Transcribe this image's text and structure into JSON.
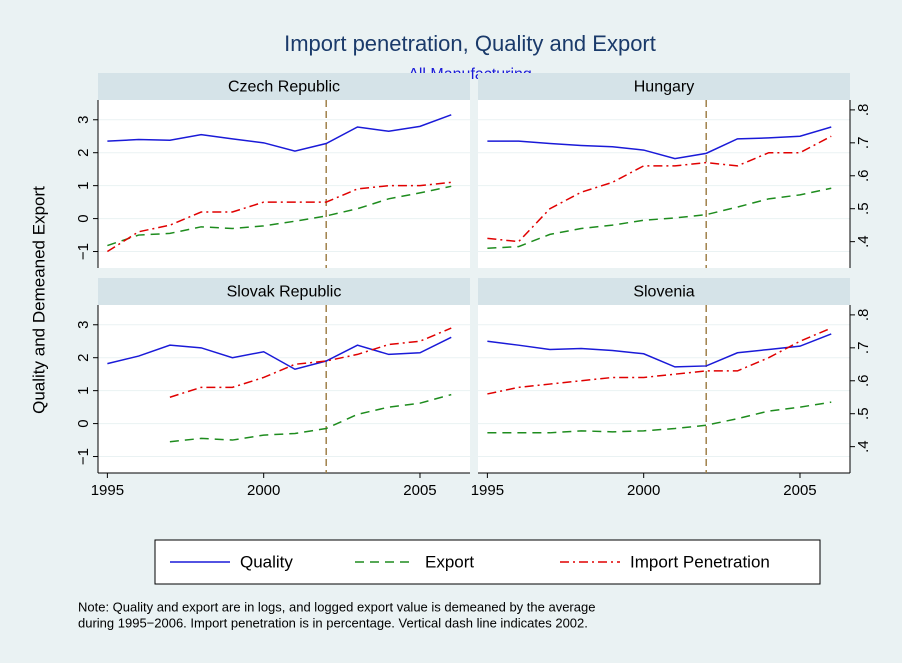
{
  "figure": {
    "title": "Import penetration, Quality and Export",
    "subtitle": "All Manufacturing",
    "y_label": "Quality and Demeaned Export",
    "note": [
      "Note: Quality and export are in logs, and logged export value is demeaned by the average",
      "during 1995−2006. Import penetration is in percentage. Vertical dash line indicates 2002."
    ]
  },
  "chart_data": [
    {
      "type": "line",
      "title": "Czech Republic",
      "x": [
        1995,
        1996,
        1997,
        1998,
        1999,
        2000,
        2001,
        2002,
        2003,
        2004,
        2005,
        2006
      ],
      "series": [
        {
          "name": "Quality",
          "color": "#1a1ad8",
          "style": "solid",
          "values": [
            2.35,
            2.4,
            2.38,
            2.55,
            2.42,
            2.3,
            2.05,
            2.28,
            2.78,
            2.65,
            2.8,
            3.15
          ]
        },
        {
          "name": "Export",
          "color": "#1e8c1e",
          "style": "dash",
          "values": [
            -0.82,
            -0.5,
            -0.45,
            -0.25,
            -0.3,
            -0.22,
            -0.08,
            0.08,
            0.3,
            0.6,
            0.78,
            0.98
          ]
        },
        {
          "name": "Import Penetration",
          "color": "#e00000",
          "style": "dashdot",
          "axis": "y2",
          "values": [
            0.37,
            0.43,
            0.45,
            0.49,
            0.49,
            0.52,
            0.52,
            0.52,
            0.56,
            0.57,
            0.57,
            0.58
          ]
        }
      ],
      "xlim": [
        1994.7,
        2006.6
      ],
      "xticks": [
        1995,
        2000,
        2005
      ],
      "ylim": [
        -1.5,
        3.6
      ],
      "yticks": [
        {
          "value": -1,
          "label": "−1"
        },
        0,
        1,
        2,
        3
      ],
      "y2lim": [
        0.32,
        0.83
      ],
      "y2ticks": [
        {
          "value": 0.4,
          "label": ".4"
        },
        {
          "value": 0.5,
          "label": ".5"
        },
        {
          "value": 0.6,
          "label": ".6"
        },
        {
          "value": 0.7,
          "label": ".7"
        },
        {
          "value": 0.8,
          "label": ".8"
        }
      ],
      "xline": 2002,
      "grid": true
    },
    {
      "type": "line",
      "title": "Hungary",
      "x": [
        1995,
        1996,
        1997,
        1998,
        1999,
        2000,
        2001,
        2002,
        2003,
        2004,
        2005,
        2006
      ],
      "series": [
        {
          "name": "Quality",
          "color": "#1a1ad8",
          "style": "solid",
          "values": [
            2.35,
            2.35,
            2.28,
            2.22,
            2.18,
            2.08,
            1.82,
            1.98,
            2.42,
            2.45,
            2.5,
            2.78
          ]
        },
        {
          "name": "Export",
          "color": "#1e8c1e",
          "style": "dash",
          "values": [
            -0.9,
            -0.85,
            -0.48,
            -0.3,
            -0.2,
            -0.05,
            0.02,
            0.12,
            0.35,
            0.6,
            0.72,
            0.92
          ]
        },
        {
          "name": "Import Penetration",
          "color": "#e00000",
          "style": "dashdot",
          "axis": "y2",
          "values": [
            0.41,
            0.4,
            0.5,
            0.55,
            0.58,
            0.63,
            0.63,
            0.64,
            0.63,
            0.67,
            0.67,
            0.72
          ]
        }
      ],
      "xlim": [
        1994.7,
        2006.6
      ],
      "xticks": [
        1995,
        2000,
        2005
      ],
      "ylim": [
        -1.5,
        3.6
      ],
      "yticks": [
        {
          "value": -1,
          "label": "−1"
        },
        0,
        1,
        2,
        3
      ],
      "y2lim": [
        0.32,
        0.83
      ],
      "y2ticks": [
        {
          "value": 0.4,
          "label": ".4"
        },
        {
          "value": 0.5,
          "label": ".5"
        },
        {
          "value": 0.6,
          "label": ".6"
        },
        {
          "value": 0.7,
          "label": ".7"
        },
        {
          "value": 0.8,
          "label": ".8"
        }
      ],
      "xline": 2002,
      "grid": true
    },
    {
      "type": "line",
      "title": "Slovak Republic",
      "x": [
        1995,
        1996,
        1997,
        1998,
        1999,
        2000,
        2001,
        2002,
        2003,
        2004,
        2005,
        2006
      ],
      "series": [
        {
          "name": "Quality",
          "color": "#1a1ad8",
          "style": "solid",
          "values": [
            1.82,
            2.05,
            2.38,
            2.3,
            2.0,
            2.18,
            1.65,
            1.9,
            2.38,
            2.1,
            2.15,
            2.62
          ]
        },
        {
          "name": "Export",
          "color": "#1e8c1e",
          "style": "dash",
          "values": [
            null,
            null,
            -0.55,
            -0.45,
            -0.5,
            -0.35,
            -0.3,
            -0.15,
            0.28,
            0.5,
            0.62,
            0.88
          ]
        },
        {
          "name": "Import Penetration",
          "color": "#e00000",
          "style": "dashdot",
          "axis": "y2",
          "values": [
            null,
            null,
            0.55,
            0.58,
            0.58,
            0.61,
            0.65,
            0.66,
            0.68,
            0.71,
            0.72,
            0.76
          ]
        }
      ],
      "xlim": [
        1994.7,
        2006.6
      ],
      "xticks": [
        1995,
        2000,
        2005
      ],
      "ylim": [
        -1.5,
        3.6
      ],
      "yticks": [
        {
          "value": -1,
          "label": "−1"
        },
        0,
        1,
        2,
        3
      ],
      "y2lim": [
        0.32,
        0.83
      ],
      "y2ticks": [
        {
          "value": 0.4,
          "label": ".4"
        },
        {
          "value": 0.5,
          "label": ".5"
        },
        {
          "value": 0.6,
          "label": ".6"
        },
        {
          "value": 0.7,
          "label": ".7"
        },
        {
          "value": 0.8,
          "label": ".8"
        }
      ],
      "xline": 2002,
      "grid": true
    },
    {
      "type": "line",
      "title": "Slovenia",
      "x": [
        1995,
        1996,
        1997,
        1998,
        1999,
        2000,
        2001,
        2002,
        2003,
        2004,
        2005,
        2006
      ],
      "series": [
        {
          "name": "Quality",
          "color": "#1a1ad8",
          "style": "solid",
          "values": [
            2.5,
            2.38,
            2.25,
            2.28,
            2.22,
            2.12,
            1.72,
            1.75,
            2.15,
            2.25,
            2.35,
            2.72
          ]
        },
        {
          "name": "Export",
          "color": "#1e8c1e",
          "style": "dash",
          "values": [
            -0.28,
            -0.28,
            -0.28,
            -0.22,
            -0.25,
            -0.22,
            -0.15,
            -0.05,
            0.15,
            0.38,
            0.5,
            0.65
          ]
        },
        {
          "name": "Import Penetration",
          "color": "#e00000",
          "style": "dashdot",
          "axis": "y2",
          "values": [
            0.56,
            0.58,
            0.59,
            0.6,
            0.61,
            0.61,
            0.62,
            0.63,
            0.63,
            0.67,
            0.72,
            0.76
          ]
        }
      ],
      "xlim": [
        1994.7,
        2006.6
      ],
      "xticks": [
        1995,
        2000,
        2005
      ],
      "ylim": [
        -1.5,
        3.6
      ],
      "yticks": [
        {
          "value": -1,
          "label": "−1"
        },
        0,
        1,
        2,
        3
      ],
      "y2lim": [
        0.32,
        0.83
      ],
      "y2ticks": [
        {
          "value": 0.4,
          "label": ".4"
        },
        {
          "value": 0.5,
          "label": ".5"
        },
        {
          "value": 0.6,
          "label": ".6"
        },
        {
          "value": 0.7,
          "label": ".7"
        },
        {
          "value": 0.8,
          "label": ".8"
        }
      ],
      "xline": 2002,
      "grid": true
    }
  ]
}
